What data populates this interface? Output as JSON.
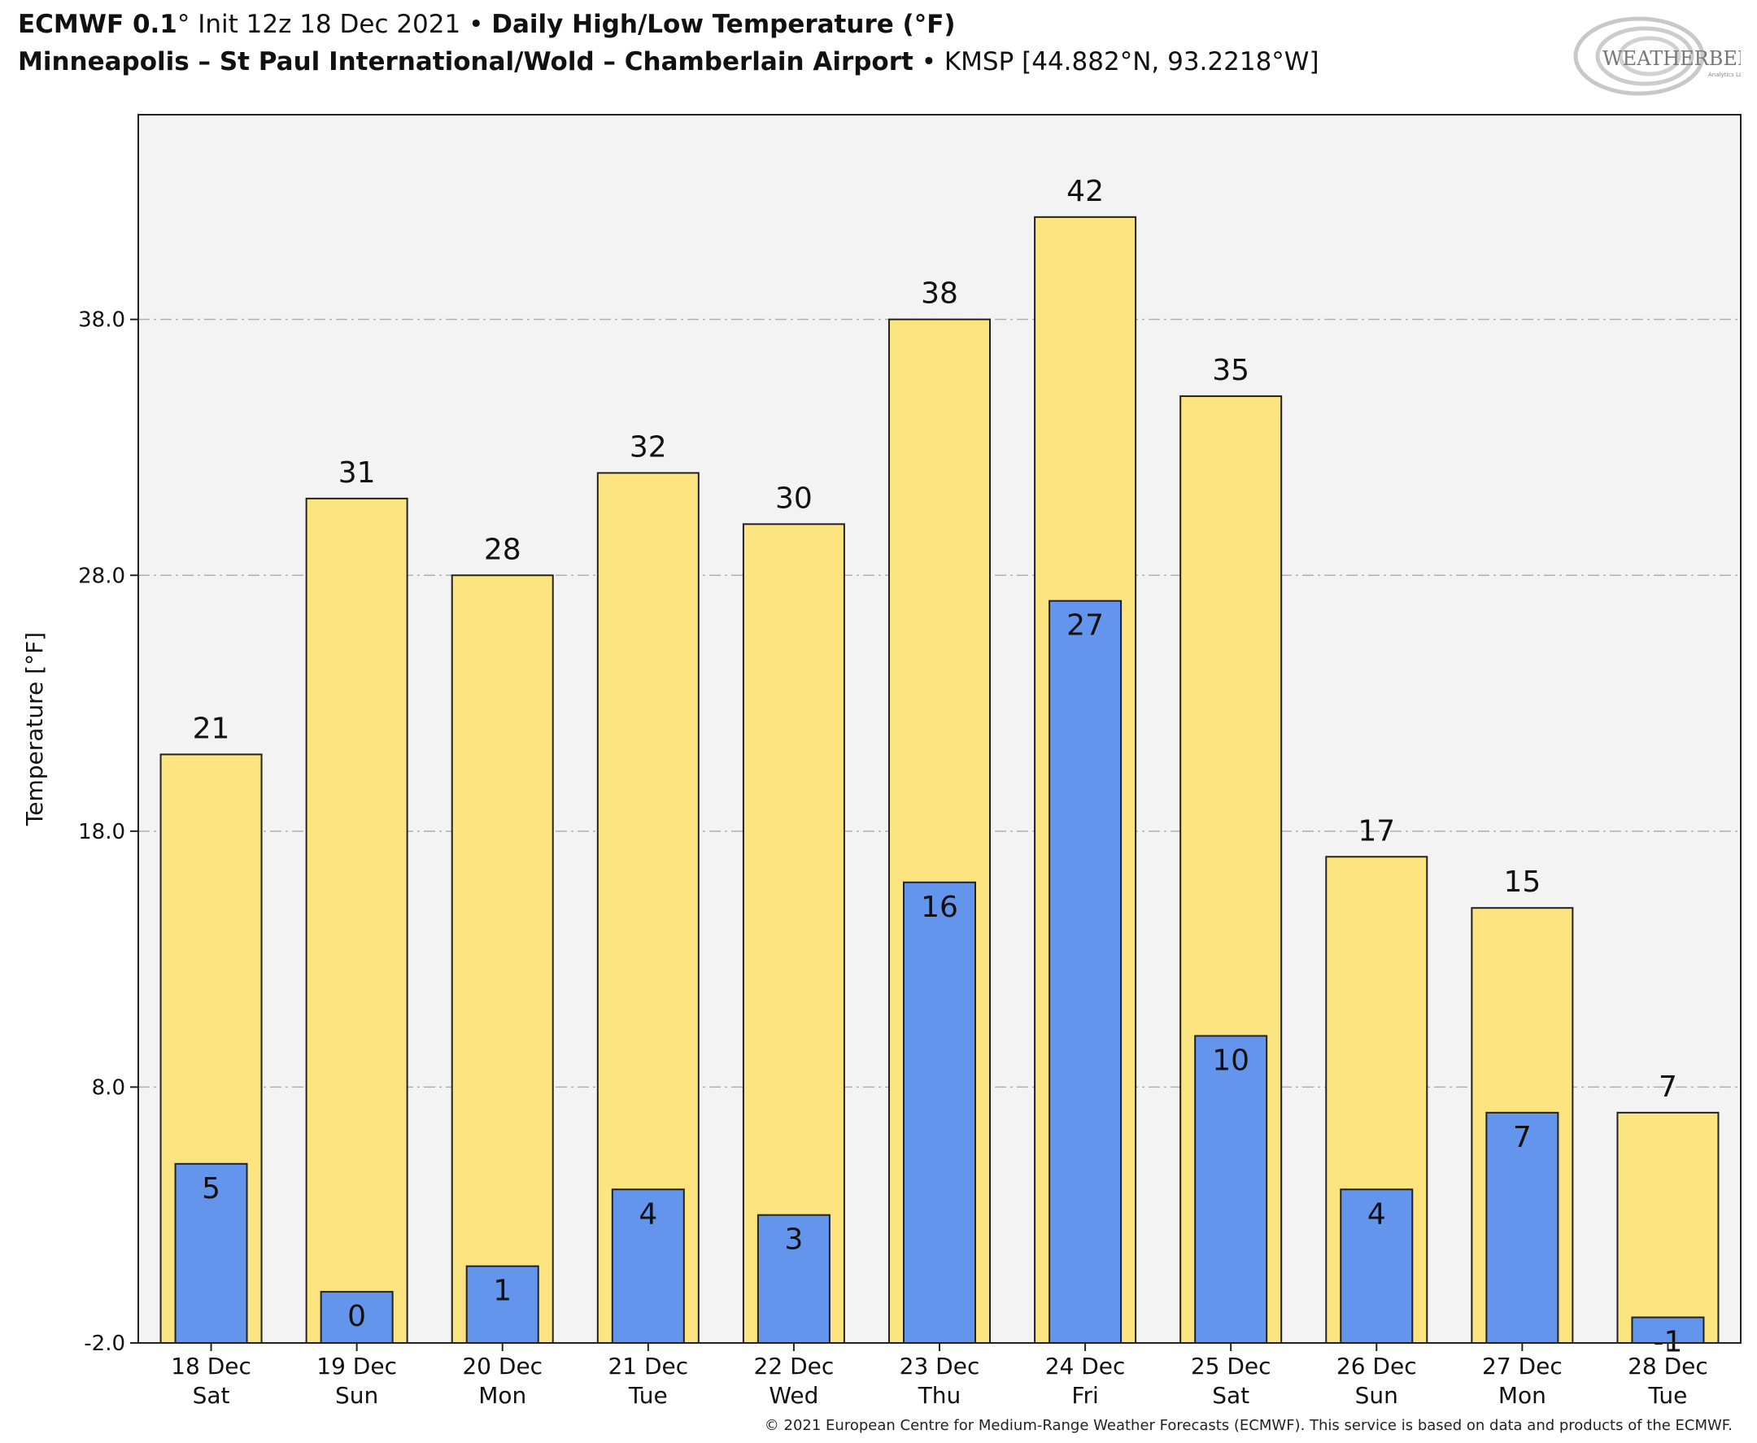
{
  "header": {
    "model": "ECMWF 0.1",
    "init": "° Init 12z 18 Dec 2021",
    "sep": " • ",
    "product": "Daily High/Low Temperature (°F)",
    "location": "Minneapolis – St Paul International/Wold – Chamberlain Airport",
    "station": "KMSP [44.882°N, 93.2218°W]"
  },
  "logo": {
    "text": "WEATHERBELL",
    "sub": "Analytics LLC"
  },
  "footer": "© 2021 European Centre for Medium-Range Weather Forecasts (ECMWF). This service is based on data and products of the ECMWF.",
  "chart_data": {
    "type": "bar",
    "ylabel": "Temperature [°F]",
    "ylim": [
      -2,
      46
    ],
    "yticks": [
      -2.0,
      8.0,
      18.0,
      28.0,
      38.0
    ],
    "ytick_labels": [
      "-2.0",
      "8.0",
      "18.0",
      "28.0",
      "38.0"
    ],
    "grid": "horizontal dashed",
    "categories": [
      [
        "18 Dec",
        "Sat"
      ],
      [
        "19 Dec",
        "Sun"
      ],
      [
        "20 Dec",
        "Mon"
      ],
      [
        "21 Dec",
        "Tue"
      ],
      [
        "22 Dec",
        "Wed"
      ],
      [
        "23 Dec",
        "Thu"
      ],
      [
        "24 Dec",
        "Fri"
      ],
      [
        "25 Dec",
        "Sat"
      ],
      [
        "26 Dec",
        "Sun"
      ],
      [
        "27 Dec",
        "Mon"
      ],
      [
        "28 Dec",
        "Tue"
      ]
    ],
    "series": [
      {
        "role": "high",
        "color": "#fce480",
        "values": [
          21,
          31,
          28,
          32,
          30,
          38,
          42,
          35,
          17,
          15,
          7
        ],
        "labels": [
          "21",
          "31",
          "28",
          "32",
          "30",
          "38",
          "42",
          "35",
          "17",
          "15",
          "7"
        ]
      },
      {
        "role": "low",
        "color": "#6495ed",
        "values": [
          5,
          0,
          1,
          4,
          3,
          16,
          27,
          10,
          4,
          7,
          -1
        ],
        "labels": [
          "5",
          "0",
          "1",
          "4",
          "3",
          "16",
          "27",
          "10",
          "4",
          "7",
          "-1"
        ]
      }
    ]
  },
  "colors": {
    "plot_bg": "#f3f3f3",
    "grid": "#b0b0b0"
  }
}
